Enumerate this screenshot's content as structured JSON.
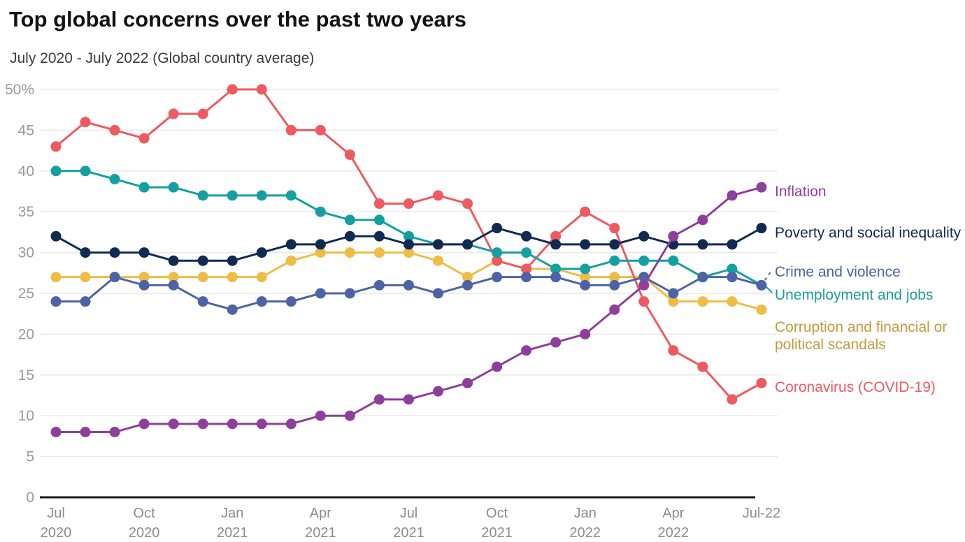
{
  "title": "Top global concerns over the past two years",
  "subtitle": "July 2020 - July 2022 (Global country average)",
  "chart_data": {
    "type": "line",
    "unit": "%",
    "title": "Top global concerns over the past two years",
    "subtitle": "July 2020 - July 2022 (Global country average)",
    "ylim": [
      0,
      50
    ],
    "y_ticks": [
      0,
      5,
      10,
      15,
      20,
      25,
      30,
      35,
      40,
      45,
      50
    ],
    "y_top_tick_label": "50%",
    "grid": "horizontal",
    "legend_position": "right-edge-direct-labels",
    "x": [
      "Jul 2020",
      "Aug 2020",
      "Sep 2020",
      "Oct 2020",
      "Nov 2020",
      "Dec 2020",
      "Jan 2021",
      "Feb 2021",
      "Mar 2021",
      "Apr 2021",
      "May 2021",
      "Jun 2021",
      "Jul 2021",
      "Aug 2021",
      "Sep 2021",
      "Oct 2021",
      "Nov 2021",
      "Dec 2021",
      "Jan 2022",
      "Feb 2022",
      "Mar 2022",
      "Apr 2022",
      "May 2022",
      "Jun 2022",
      "Jul 2022"
    ],
    "x_tick_labels": [
      [
        "Jul",
        "2020"
      ],
      [
        "Oct",
        "2020"
      ],
      [
        "Jan",
        "2021"
      ],
      [
        "Apr",
        "2021"
      ],
      [
        "Jul",
        "2021"
      ],
      [
        "Oct",
        "2021"
      ],
      [
        "Jan",
        "2022"
      ],
      [
        "Apr",
        "2022"
      ],
      [
        "Jul-22"
      ]
    ],
    "series": [
      {
        "name": "Corruption and financial or political scandals",
        "color": "#eebd45",
        "label_color": "#c49b3b",
        "label_lines": [
          "Corruption and financial or",
          "political scandals"
        ],
        "values": [
          27,
          27,
          27,
          27,
          27,
          27,
          27,
          27,
          29,
          30,
          30,
          30,
          30,
          29,
          27,
          29,
          28,
          28,
          27,
          27,
          27,
          24,
          24,
          24,
          23
        ]
      },
      {
        "name": "Coronavirus (COVID-19)",
        "color": "#ee5a5f",
        "label_color": "#ee5a5f",
        "label_lines": [
          "Coronavirus (COVID-19)"
        ],
        "values": [
          43,
          46,
          45,
          44,
          47,
          47,
          50,
          50,
          45,
          45,
          42,
          36,
          36,
          37,
          36,
          29,
          28,
          32,
          35,
          33,
          24,
          18,
          16,
          12,
          14
        ]
      },
      {
        "name": "Unemployment and jobs",
        "color": "#14a0a0",
        "label_color": "#1c9e98",
        "label_lines": [
          "Unemployment and jobs"
        ],
        "values": [
          40,
          40,
          39,
          38,
          38,
          37,
          37,
          37,
          37,
          35,
          34,
          34,
          32,
          31,
          31,
          30,
          30,
          28,
          28,
          29,
          29,
          29,
          27,
          28,
          26
        ]
      },
      {
        "name": "Poverty and social inequality",
        "color": "#102a52",
        "label_color": "#102a52",
        "label_lines": [
          "Poverty and social inequality"
        ],
        "values": [
          32,
          30,
          30,
          30,
          29,
          29,
          29,
          30,
          31,
          31,
          32,
          32,
          31,
          31,
          31,
          33,
          32,
          31,
          31,
          31,
          32,
          31,
          31,
          31,
          33
        ]
      },
      {
        "name": "Crime and violence",
        "color": "#4d63a5",
        "label_color": "#4d63a5",
        "label_lines": [
          "Crime and violence"
        ],
        "values": [
          24,
          24,
          27,
          26,
          26,
          24,
          23,
          24,
          24,
          25,
          25,
          26,
          26,
          25,
          26,
          27,
          27,
          27,
          26,
          26,
          27,
          25,
          27,
          27,
          26
        ]
      },
      {
        "name": "Inflation",
        "color": "#8d3f9b",
        "label_color": "#8d3f9b",
        "label_lines": [
          "Inflation"
        ],
        "values": [
          8,
          8,
          8,
          9,
          9,
          9,
          9,
          9,
          9,
          10,
          10,
          12,
          12,
          13,
          14,
          16,
          18,
          19,
          20,
          23,
          26,
          32,
          34,
          37,
          38
        ]
      }
    ]
  }
}
